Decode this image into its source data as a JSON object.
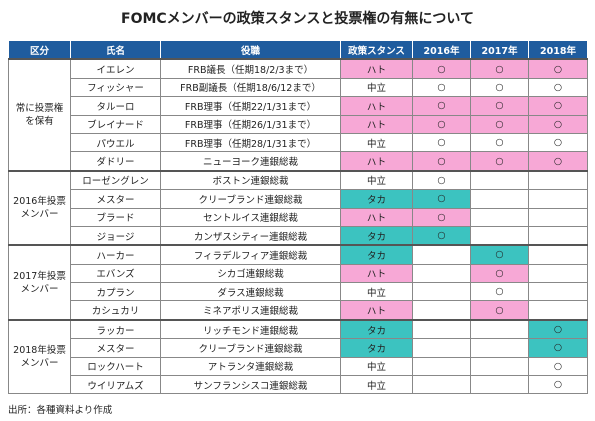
{
  "title": "FOMCメンバーの政策スタンスと投票権の有無について",
  "table": {
    "header": [
      "区分",
      "氏名",
      "役職",
      "政策スタンス",
      "2016年",
      "2017年",
      "2018年"
    ],
    "groups": [
      {
        "label": "常に投票権を保有",
        "members": [
          {
            "name": "イエレン",
            "role": "FRB議長（任期18/2/3まで）",
            "stance": "ハト",
            "color": "#f7a8d6",
            "votes": [
              "○",
              "○",
              "○"
            ]
          },
          {
            "name": "フィッシャー",
            "role": "FRB副議長（任期18/6/12まで）",
            "stance": "中立",
            "color": "#ffffff",
            "votes": [
              "○",
              "○",
              "○"
            ]
          },
          {
            "name": "タルーロ",
            "role": "FRB理事（任期22/1/31まで）",
            "stance": "ハト",
            "color": "#f7a8d6",
            "votes": [
              "○",
              "○",
              "○"
            ]
          },
          {
            "name": "ブレイナード",
            "role": "FRB理事（任期26/1/31まで）",
            "stance": "ハト",
            "color": "#f7a8d6",
            "votes": [
              "○",
              "○",
              "○"
            ]
          },
          {
            "name": "パウエル",
            "role": "FRB理事（任期28/1/31まで）",
            "stance": "中立",
            "color": "#ffffff",
            "votes": [
              "○",
              "○",
              "○"
            ]
          },
          {
            "name": "ダドリー",
            "role": "ニューヨーク連銀総裁",
            "stance": "ハト",
            "color": "#f7a8d6",
            "votes": [
              "○",
              "○",
              "○"
            ]
          }
        ]
      },
      {
        "label": "2016年投票メンバー",
        "members": [
          {
            "name": "ローゼングレン",
            "role": "ボストン連銀総裁",
            "stance": "中立",
            "color": "#ffffff",
            "votes": [
              "○",
              null,
              null
            ]
          },
          {
            "name": "メスター",
            "role": "クリーブランド連銀総裁",
            "stance": "タカ",
            "color": "#3cc3c0",
            "votes": [
              "○",
              null,
              null
            ]
          },
          {
            "name": "ブラード",
            "role": "セントルイス連銀総裁",
            "stance": "ハト",
            "color": "#f7a8d6",
            "votes": [
              "○",
              null,
              null
            ]
          },
          {
            "name": "ジョージ",
            "role": "カンザスシティー連銀総裁",
            "stance": "タカ",
            "color": "#3cc3c0",
            "votes": [
              "○",
              null,
              null
            ]
          }
        ]
      },
      {
        "label": "2017年投票メンバー",
        "members": [
          {
            "name": "ハーカー",
            "role": "フィラデルフィア連銀総裁",
            "stance": "タカ",
            "color": "#3cc3c0",
            "votes": [
              null,
              "○",
              null
            ]
          },
          {
            "name": "エバンズ",
            "role": "シカゴ連銀総裁",
            "stance": "ハト",
            "color": "#f7a8d6",
            "votes": [
              null,
              "○",
              null
            ]
          },
          {
            "name": "カプラン",
            "role": "ダラス連銀総裁",
            "stance": "中立",
            "color": "#ffffff",
            "votes": [
              null,
              "○",
              null
            ]
          },
          {
            "name": "カシュカリ",
            "role": "ミネアポリス連銀総裁",
            "stance": "ハト",
            "color": "#f7a8d6",
            "votes": [
              null,
              "○",
              null
            ]
          }
        ]
      },
      {
        "label": "2018年投票メンバー",
        "members": [
          {
            "name": "ラッカー",
            "role": "リッチモンド連銀総裁",
            "stance": "タカ",
            "color": "#3cc3c0",
            "votes": [
              null,
              null,
              "○"
            ]
          },
          {
            "name": "メスター",
            "role": "クリーブランド連銀総裁",
            "stance": "タカ",
            "color": "#3cc3c0",
            "votes": [
              null,
              null,
              "○"
            ]
          },
          {
            "name": "ロックハート",
            "role": "アトランタ連銀総裁",
            "stance": "中立",
            "color": "#ffffff",
            "votes": [
              null,
              null,
              "○"
            ]
          },
          {
            "name": "ウイリアムズ",
            "role": "サンフランシスコ連銀総裁",
            "stance": "中立",
            "color": "#ffffff",
            "votes": [
              null,
              null,
              "○"
            ]
          }
        ]
      }
    ]
  },
  "source": "出所：各種資料より作成"
}
